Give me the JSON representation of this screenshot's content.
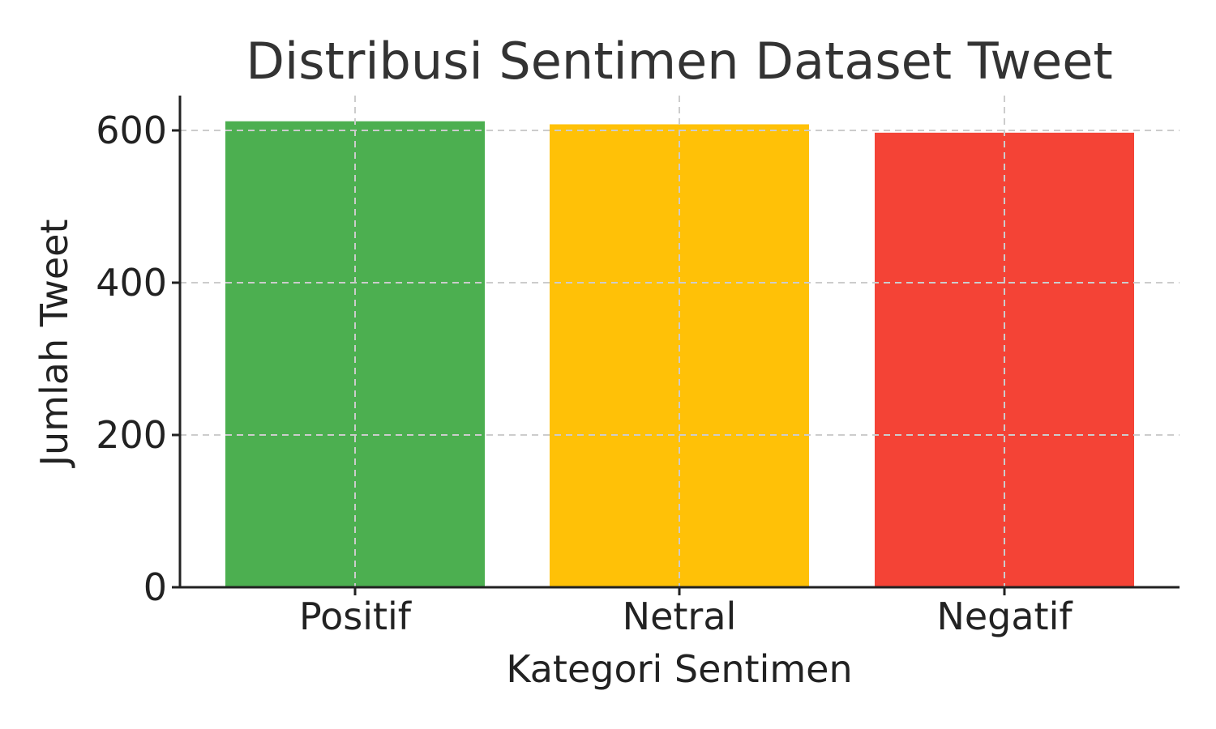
{
  "chart_data": {
    "type": "bar",
    "title": "Distribusi Sentimen Dataset Tweet",
    "xlabel": "Kategori Sentimen",
    "ylabel": "Jumlah Tweet",
    "categories": [
      "Positif",
      "Netral",
      "Negatif"
    ],
    "values": [
      612,
      608,
      597
    ],
    "colors": [
      "#4caf50",
      "#ffc107",
      "#f44336"
    ],
    "ylim": [
      0,
      640
    ],
    "yticks": [
      0,
      200,
      400,
      600
    ],
    "ytick_labels": [
      "0",
      "200",
      "400",
      "600"
    ],
    "grid": true,
    "legend": false
  }
}
